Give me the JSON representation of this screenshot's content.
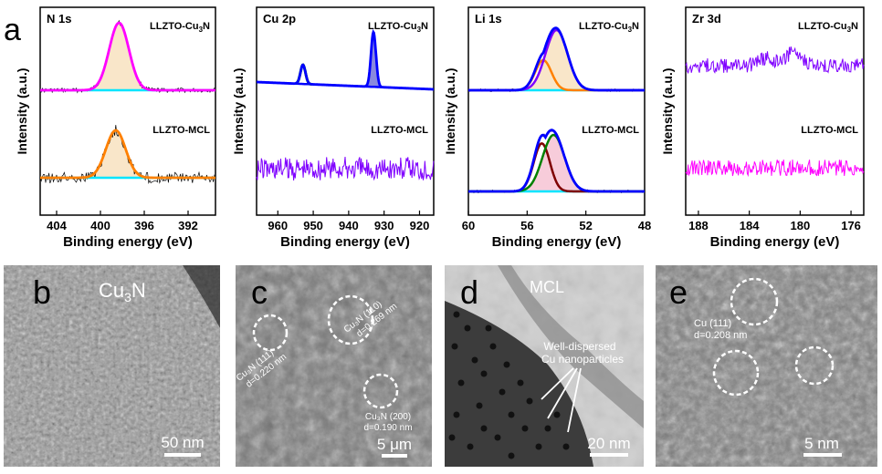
{
  "figure": {
    "panel_a": {
      "letter": "a",
      "ylabel": "Intensity (a.u.)",
      "xlabel": "Binding energy (eV)"
    },
    "tem": [
      {
        "letter": "b",
        "label": "Cu",
        "sub": "3",
        "label2": "N",
        "scale": "50 nm"
      },
      {
        "letter": "c",
        "scale": "5 μm",
        "annotations": [
          "Cu₃N (110)",
          "d=0.269 nm",
          "Cu₃N (111)",
          "d=0.220 nm",
          "Cu₃N (200)",
          "d=0.190 nm"
        ]
      },
      {
        "letter": "d",
        "label": "MCL",
        "note1": "Well-dispersed",
        "note2": "Cu nanoparticles",
        "scale": "20 nm"
      },
      {
        "letter": "e",
        "note1": "Cu (111)",
        "note2": "d=0.208 nm",
        "scale": "5 nm"
      }
    ]
  },
  "colors": {
    "magenta": "#ff00ff",
    "cyan": "#00e5ff",
    "orange": "#ff8000",
    "blue": "#0000ff",
    "green": "#008000",
    "violet": "#7f00ff",
    "darkred": "#7f0000",
    "fill_peach": "#f8e3c3",
    "fill_blue": "#6b6bd6",
    "fill_pink": "#f6c6d6",
    "noise": "#000000"
  },
  "chart_data": [
    {
      "type": "line",
      "title": "N 1s",
      "xlabel": "Binding energy (eV)",
      "ylabel": "Intensity (a.u.)",
      "xlim": [
        405.5,
        389.5
      ],
      "xticks": [
        404,
        400,
        396,
        392
      ],
      "series": [
        {
          "name": "LLZTO-Cu3N",
          "label_main": "LLZTO-Cu",
          "label_sub": "3",
          "label_end": "N",
          "fit": "peak",
          "peak_center": 398.3,
          "peak_width": 0.9,
          "peak_height": 1.0
        },
        {
          "name": "LLZTO-MCL",
          "label_main": "LLZTO-MCL",
          "fit": "peak",
          "peak_center": 398.6,
          "peak_width": 0.9,
          "peak_height": 0.7
        }
      ]
    },
    {
      "type": "line",
      "title": "Cu 2p",
      "xlabel": "Binding energy (eV)",
      "ylabel": "Intensity (a.u.)",
      "xlim": [
        966,
        916
      ],
      "xticks": [
        960,
        950,
        940,
        930,
        920
      ],
      "series": [
        {
          "name": "LLZTO-Cu3N",
          "label_main": "LLZTO-Cu",
          "label_sub": "3",
          "label_end": "N",
          "peaks": [
            {
              "center": 952.9,
              "height": 0.35
            },
            {
              "center": 933.0,
              "height": 1.0
            }
          ]
        },
        {
          "name": "LLZTO-MCL",
          "label_main": "LLZTO-MCL",
          "noise_only": true
        }
      ]
    },
    {
      "type": "line",
      "title": "Li 1s",
      "xlabel": "Binding energy (eV)",
      "ylabel": "Intensity (a.u.)",
      "xlim": [
        60,
        48
      ],
      "xticks": [
        60,
        56,
        52,
        48
      ],
      "series": [
        {
          "name": "LLZTO-Cu3N",
          "label_main": "LLZTO-Cu",
          "label_sub": "3",
          "label_end": "N",
          "components": [
            {
              "center": 54.9,
              "height": 0.5
            },
            {
              "center": 54.0,
              "height": 1.0
            }
          ]
        },
        {
          "name": "LLZTO-MCL",
          "label_main": "LLZTO-MCL",
          "components": [
            {
              "center": 55.0,
              "height": 0.85
            },
            {
              "center": 54.2,
              "height": 1.0
            }
          ]
        }
      ]
    },
    {
      "type": "line",
      "title": "Zr 3d",
      "xlabel": "Binding energy (eV)",
      "ylabel": "Intensity (a.u.)",
      "xlim": [
        189,
        175
      ],
      "xticks": [
        188,
        184,
        180,
        176
      ],
      "series": [
        {
          "name": "LLZTO-Cu3N",
          "label_main": "LLZTO-Cu",
          "label_sub": "3",
          "label_end": "N",
          "noise_only": true
        },
        {
          "name": "LLZTO-MCL",
          "label_main": "LLZTO-MCL",
          "noise_only": true
        }
      ]
    }
  ]
}
